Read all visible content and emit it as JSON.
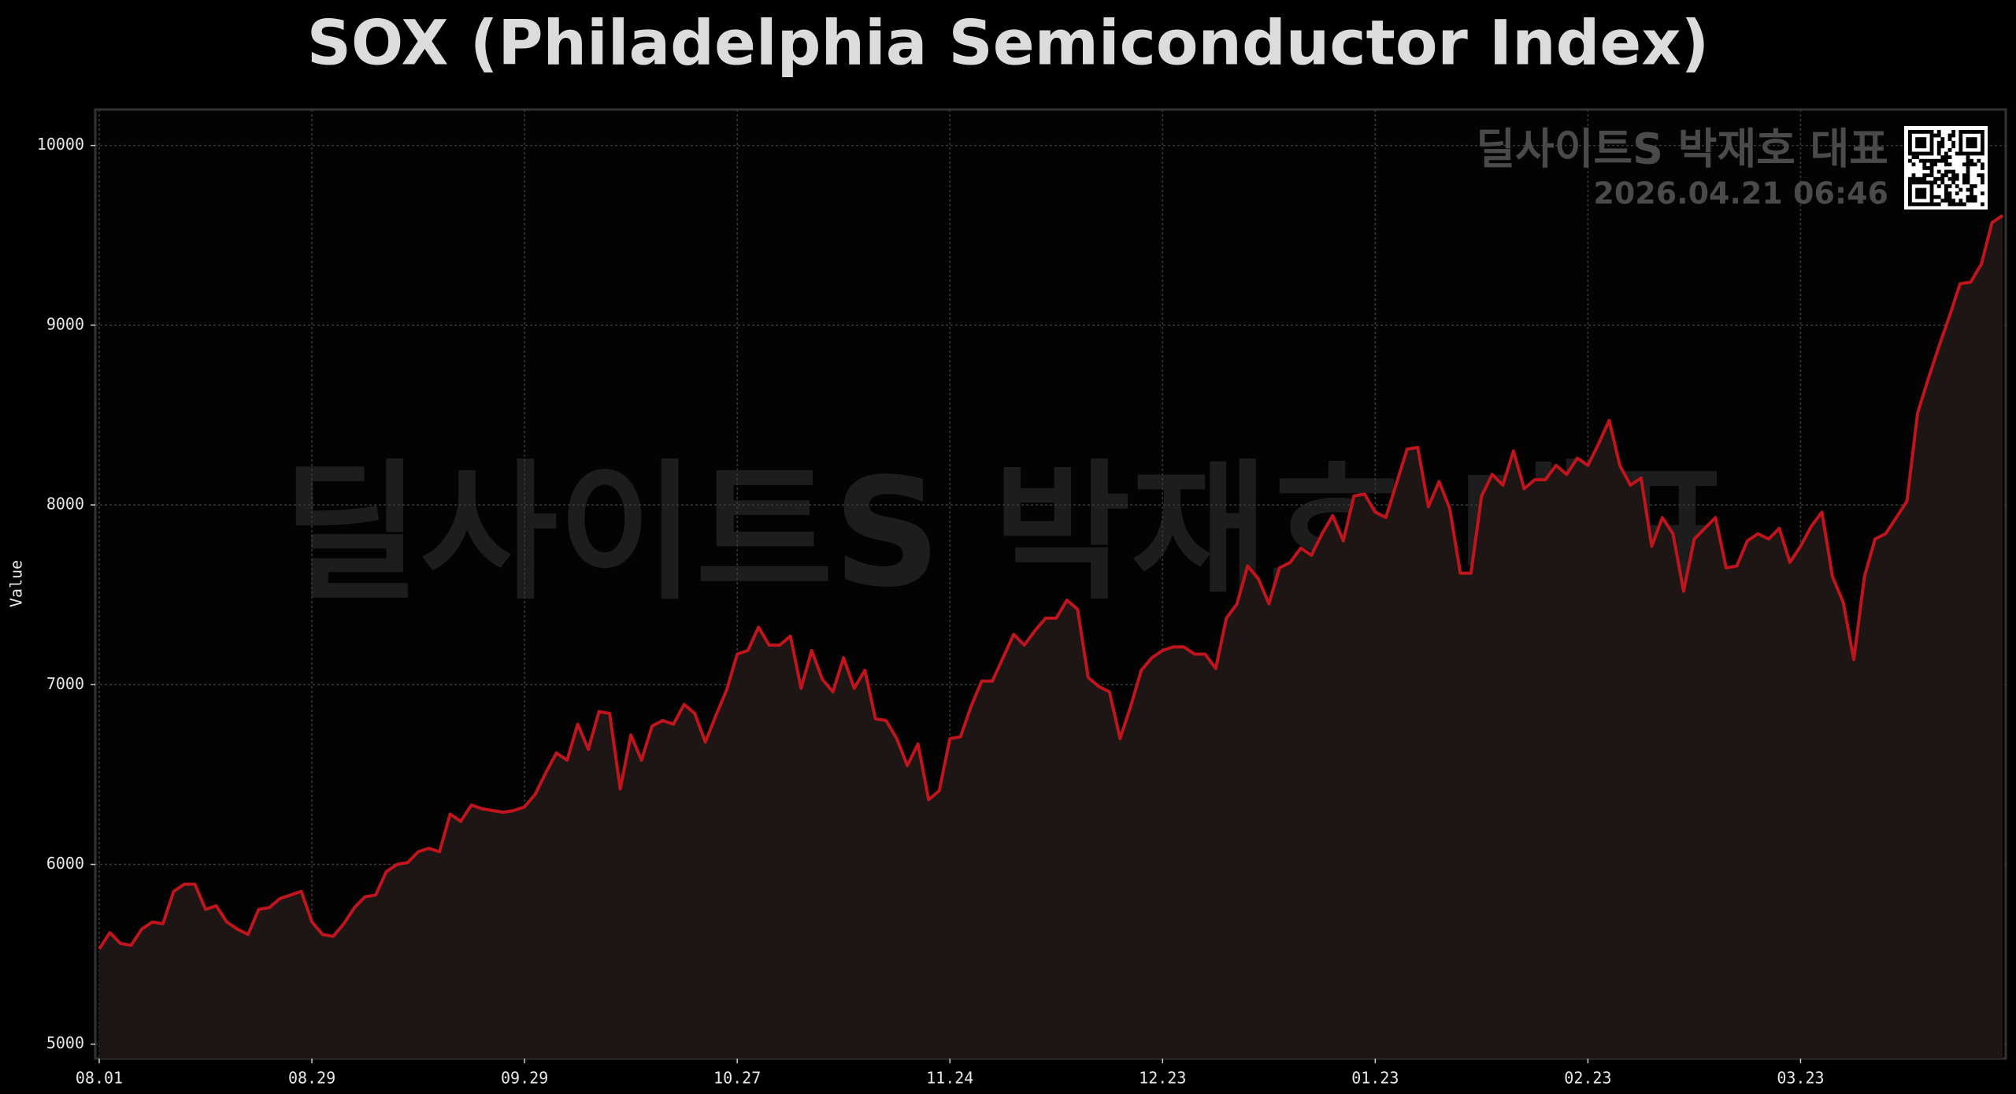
{
  "chart_data": {
    "type": "line",
    "title": "SOX (Philadelphia Semiconductor Index)",
    "ylabel": "Value",
    "watermark": "딜사이트S 박재호 대표",
    "timestamp": "2026.04.21 06:46",
    "color": "#c0151d",
    "fill": "#1e1515",
    "grid": true,
    "ylim": [
      4920,
      10200
    ],
    "yticks": [
      5000,
      6000,
      7000,
      8000,
      9000,
      10000
    ],
    "categories": [
      "08.01",
      null,
      null,
      null,
      null,
      null,
      null,
      null,
      null,
      null,
      null,
      null,
      null,
      null,
      null,
      null,
      null,
      null,
      null,
      null,
      "08.29",
      null,
      null,
      null,
      null,
      null,
      null,
      null,
      null,
      null,
      null,
      null,
      null,
      null,
      null,
      null,
      null,
      null,
      null,
      null,
      "09.29",
      null,
      null,
      null,
      null,
      null,
      null,
      null,
      null,
      null,
      null,
      null,
      null,
      null,
      null,
      null,
      null,
      null,
      null,
      null,
      "10.27",
      null,
      null,
      null,
      null,
      null,
      null,
      null,
      null,
      null,
      null,
      null,
      null,
      null,
      null,
      null,
      null,
      null,
      null,
      null,
      "11.24",
      null,
      null,
      null,
      null,
      null,
      null,
      null,
      null,
      null,
      null,
      null,
      null,
      null,
      null,
      null,
      null,
      null,
      null,
      null,
      "12.23",
      null,
      null,
      null,
      null,
      null,
      null,
      null,
      null,
      null,
      null,
      null,
      null,
      null,
      null,
      null,
      null,
      null,
      null,
      null,
      "01.23",
      null,
      null,
      null,
      null,
      null,
      null,
      null,
      null,
      null,
      null,
      null,
      null,
      null,
      null,
      null,
      null,
      null,
      null,
      null,
      "02.23",
      null,
      null,
      null,
      null,
      null,
      null,
      null,
      null,
      null,
      null,
      null,
      null,
      null,
      null,
      null,
      null,
      null,
      null,
      null,
      "03.23",
      null,
      null,
      null,
      null,
      null,
      null,
      null,
      null,
      null,
      null,
      null,
      null,
      null,
      null,
      null,
      null,
      null,
      null,
      null
    ],
    "values": [
      5530,
      5620,
      5560,
      5550,
      5640,
      5680,
      5670,
      5850,
      5890,
      5890,
      5750,
      5770,
      5680,
      5640,
      5610,
      5750,
      5760,
      5810,
      5830,
      5850,
      5680,
      5610,
      5600,
      5670,
      5760,
      5820,
      5830,
      5960,
      6000,
      6010,
      6070,
      6090,
      6070,
      6280,
      6240,
      6330,
      6310,
      6300,
      6290,
      6300,
      6320,
      6390,
      6510,
      6620,
      6580,
      6780,
      6640,
      6850,
      6840,
      6420,
      6720,
      6580,
      6770,
      6800,
      6780,
      6890,
      6840,
      6680,
      6830,
      6970,
      7170,
      7190,
      7320,
      7220,
      7220,
      7270,
      6980,
      7190,
      7030,
      6960,
      7150,
      6980,
      7080,
      6810,
      6800,
      6700,
      6550,
      6670,
      6360,
      6410,
      6700,
      6710,
      6880,
      7020,
      7020,
      7150,
      7280,
      7220,
      7300,
      7370,
      7370,
      7470,
      7420,
      7040,
      6990,
      6960,
      6700,
      6880,
      7080,
      7150,
      7190,
      7210,
      7210,
      7170,
      7170,
      7090,
      7370,
      7450,
      7660,
      7590,
      7450,
      7650,
      7680,
      7760,
      7720,
      7840,
      7940,
      7800,
      8050,
      8060,
      7960,
      7930,
      8120,
      8310,
      8320,
      7990,
      8130,
      7980,
      7620,
      7620,
      8050,
      8170,
      8110,
      8300,
      8090,
      8140,
      8140,
      8220,
      8170,
      8260,
      8220,
      8340,
      8470,
      8220,
      8110,
      8150,
      7770,
      7930,
      7840,
      7520,
      7810,
      7870,
      7930,
      7650,
      7660,
      7800,
      7840,
      7810,
      7870,
      7680,
      7770,
      7880,
      7960,
      7600,
      7460,
      7140,
      7600,
      7810,
      7840,
      7930,
      8020,
      8510,
      8700,
      8880,
      9050,
      9230,
      9240,
      9340,
      9570,
      9610
    ]
  }
}
